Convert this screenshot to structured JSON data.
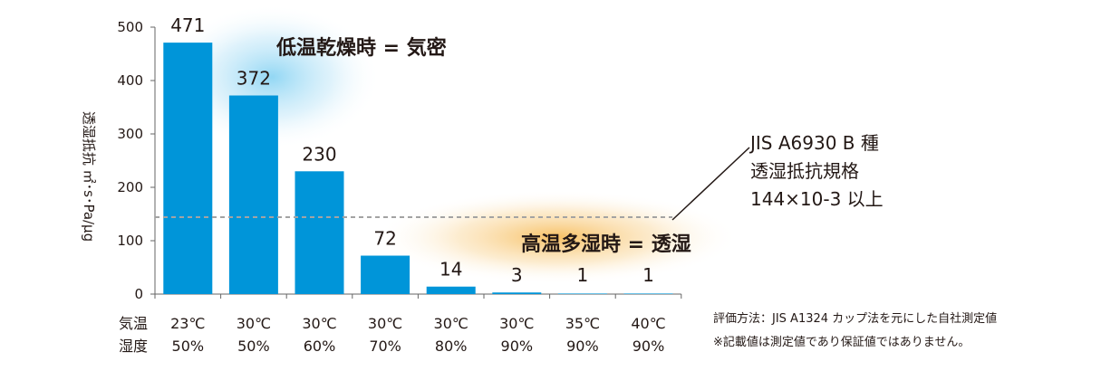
{
  "chart_data": {
    "type": "bar",
    "categories": [
      "23℃ 50%",
      "30℃ 50%",
      "30℃ 60%",
      "30℃ 70%",
      "30℃ 80%",
      "30℃ 90%",
      "35℃ 90%",
      "40℃ 90%"
    ],
    "values": [
      471,
      372,
      230,
      72,
      14,
      3,
      1,
      1
    ],
    "ylim": [
      0,
      500
    ],
    "yticks": [
      0,
      100,
      200,
      300,
      400,
      500
    ],
    "ylabel": "透湿抵抗 ㎡･s･Pa/μg",
    "row_labels": [
      "気温",
      "湿度"
    ],
    "temperature_labels": [
      "23℃",
      "30℃",
      "30℃",
      "30℃",
      "30℃",
      "30℃",
      "35℃",
      "40℃"
    ],
    "humidity_labels": [
      "50%",
      "50%",
      "60%",
      "70%",
      "80%",
      "90%",
      "90%",
      "90%"
    ],
    "reference_line": {
      "value": 144
    },
    "grid": false,
    "bar_color": "#0095d9",
    "annotations": {
      "dry": "低温乾燥時 = 気密",
      "humid": "高温多湿時 = 透湿"
    }
  },
  "spec_label": [
    "JIS A6930 B 種",
    "透湿抵抗規格",
    "144×10-3 以上"
  ],
  "notes": [
    "評価方法：JIS A1324 カップ法を元にした自社測定値",
    "※記載値は測定値であり保証値ではありません。"
  ]
}
